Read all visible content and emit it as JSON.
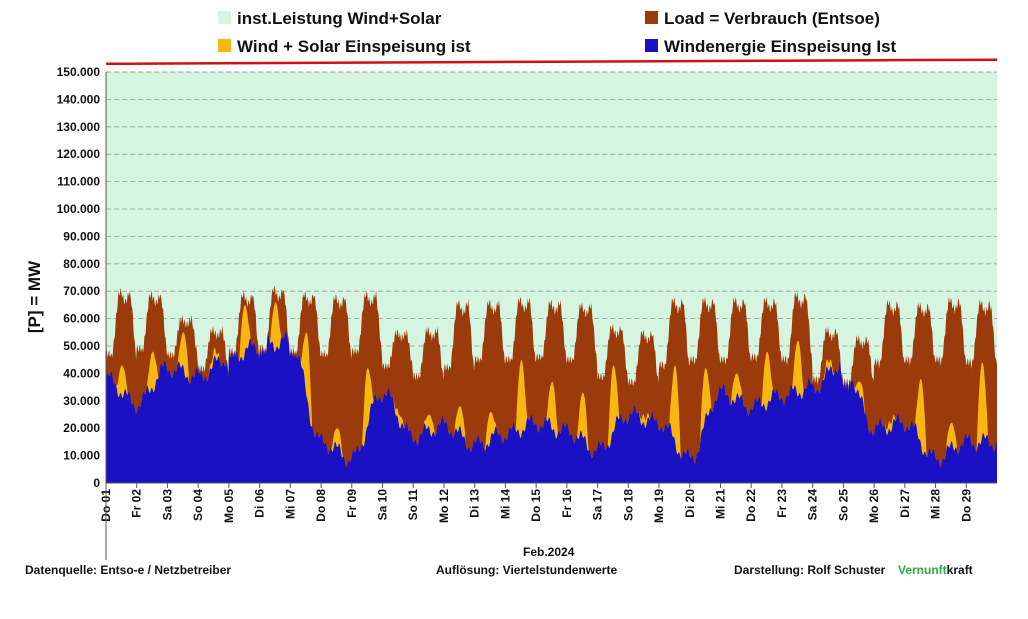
{
  "legend": [
    {
      "label": "inst.Leistung Wind+Solar",
      "color": "#d6f5e0"
    },
    {
      "label": "Load =  Verbrauch (Entsoe)",
      "color": "#9b3a0a"
    },
    {
      "label": "Wind + Solar Einspeisung ist",
      "color": "#f7b70f"
    },
    {
      "label": "Windenergie Einspeisung Ist",
      "color": "#1a11c4"
    }
  ],
  "footer": {
    "source": "Datenquelle:  Entso-e  / Netzbetreiber",
    "resolution": "Auflösung: Viertelstundenwerte",
    "credit": "Darstellung:  Rolf Schuster",
    "brand_green": "Vernunft",
    "brand_black": "kraft"
  },
  "chart_data": {
    "type": "area",
    "xlabel": "Feb.2024",
    "ylabel": "[P] = MW",
    "ylim": [
      0,
      150000
    ],
    "y_ticks": [
      "0",
      "10.000",
      "20.000",
      "30.000",
      "40.000",
      "50.000",
      "60.000",
      "70.000",
      "80.000",
      "90.000",
      "100.000",
      "110.000",
      "120.000",
      "130.000",
      "140.000",
      "150.000"
    ],
    "x_tick_labels": [
      "Do 01",
      "Fr 02",
      "Sa 03",
      "So 04",
      "Mo 05",
      "Di 06",
      "Mi 07",
      "Do 08",
      "Fr 09",
      "Sa 10",
      "So 11",
      "Mo 12",
      "Di 13",
      "Mi 14",
      "Do 15",
      "Fr 16",
      "Sa 17",
      "So 18",
      "Mo 19",
      "Di 20",
      "Mi 21",
      "Do 22",
      "Fr 23",
      "Sa 24",
      "So 25",
      "Mo 26",
      "Di 27",
      "Mi 28",
      "Do 29"
    ],
    "days": 29,
    "grid": true,
    "legend_position": "top",
    "daily_load_min_max_MW": [
      [
        46000,
        70000
      ],
      [
        48000,
        69000
      ],
      [
        46000,
        60000
      ],
      [
        41000,
        56000
      ],
      [
        47000,
        69000
      ],
      [
        48000,
        71000
      ],
      [
        47000,
        69000
      ],
      [
        46000,
        68000
      ],
      [
        47000,
        69000
      ],
      [
        42000,
        55000
      ],
      [
        38000,
        56000
      ],
      [
        41000,
        66000
      ],
      [
        44000,
        66000
      ],
      [
        44000,
        67000
      ],
      [
        45000,
        66000
      ],
      [
        44000,
        65000
      ],
      [
        38000,
        57000
      ],
      [
        36000,
        55000
      ],
      [
        42000,
        67000
      ],
      [
        44000,
        67000
      ],
      [
        44000,
        67000
      ],
      [
        45000,
        67000
      ],
      [
        44000,
        69000
      ],
      [
        37000,
        56000
      ],
      [
        36000,
        53000
      ],
      [
        43000,
        66000
      ],
      [
        44000,
        65000
      ],
      [
        44000,
        67000
      ],
      [
        43000,
        66000
      ]
    ],
    "daily_wind_solar_peak_MW": [
      43000,
      48000,
      55000,
      44000,
      65000,
      66000,
      55000,
      20000,
      42000,
      25000,
      25000,
      28000,
      26000,
      45000,
      37000,
      33000,
      43000,
      22000,
      43000,
      42000,
      40000,
      48000,
      52000,
      36000,
      37000,
      20000,
      38000,
      22000,
      44000
    ],
    "daily_wind_mean_MW": [
      38000,
      29000,
      42000,
      39000,
      46000,
      50000,
      52000,
      15000,
      9000,
      33000,
      17000,
      21000,
      14000,
      18000,
      22000,
      19000,
      12000,
      25000,
      22000,
      9000,
      33000,
      28000,
      32000,
      35000,
      44000,
      20000,
      22000,
      9000,
      15000
    ],
    "installed_capacity_MW": [
      153000,
      154500
    ]
  }
}
